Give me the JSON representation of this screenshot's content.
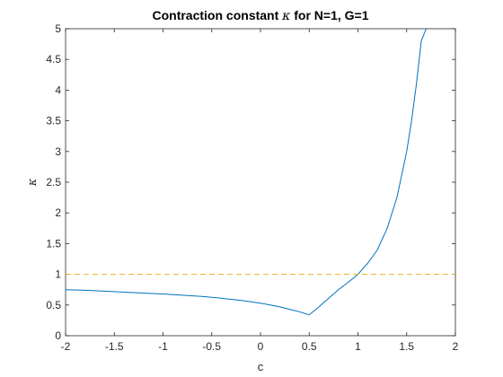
{
  "chart_data": {
    "type": "line",
    "title": "Contraction constant κ for N=1, G=1",
    "title_parts": {
      "prefix": "Contraction constant ",
      "symbol": "κ",
      "suffix": " for N=1, G=1"
    },
    "xlabel": "c",
    "ylabel": "κ",
    "xlim": [
      -2,
      2
    ],
    "ylim": [
      0,
      5
    ],
    "x_ticks": [
      "-2",
      "-1.5",
      "-1",
      "-0.5",
      "0",
      "0.5",
      "1",
      "1.5",
      "2"
    ],
    "y_ticks": [
      "0",
      "0.5",
      "1",
      "1.5",
      "2",
      "2.5",
      "3",
      "3.5",
      "4",
      "4.5",
      "5"
    ],
    "grid": false,
    "series": [
      {
        "color": "#0072BD",
        "style": "solid",
        "x": [
          -2,
          -1.8,
          -1.6,
          -1.4,
          -1.2,
          -1,
          -0.8,
          -0.6,
          -0.4,
          -0.2,
          0,
          0.1,
          0.2,
          0.3,
          0.4,
          0.5,
          0.6,
          0.7,
          0.8,
          0.9,
          1,
          1.1,
          1.2,
          1.3,
          1.4,
          1.5,
          1.55,
          1.6,
          1.65,
          1.7
        ],
        "y": [
          0.75,
          0.74,
          0.725,
          0.71,
          0.695,
          0.68,
          0.66,
          0.64,
          0.61,
          0.575,
          0.53,
          0.5,
          0.47,
          0.43,
          0.39,
          0.34,
          0.47,
          0.61,
          0.75,
          0.87,
          1.0,
          1.18,
          1.4,
          1.75,
          2.25,
          3.0,
          3.5,
          4.1,
          4.8,
          5.0
        ]
      },
      {
        "color": "#EDB120",
        "style": "dashed",
        "x": [
          -2,
          2
        ],
        "y": [
          1,
          1
        ]
      }
    ]
  }
}
